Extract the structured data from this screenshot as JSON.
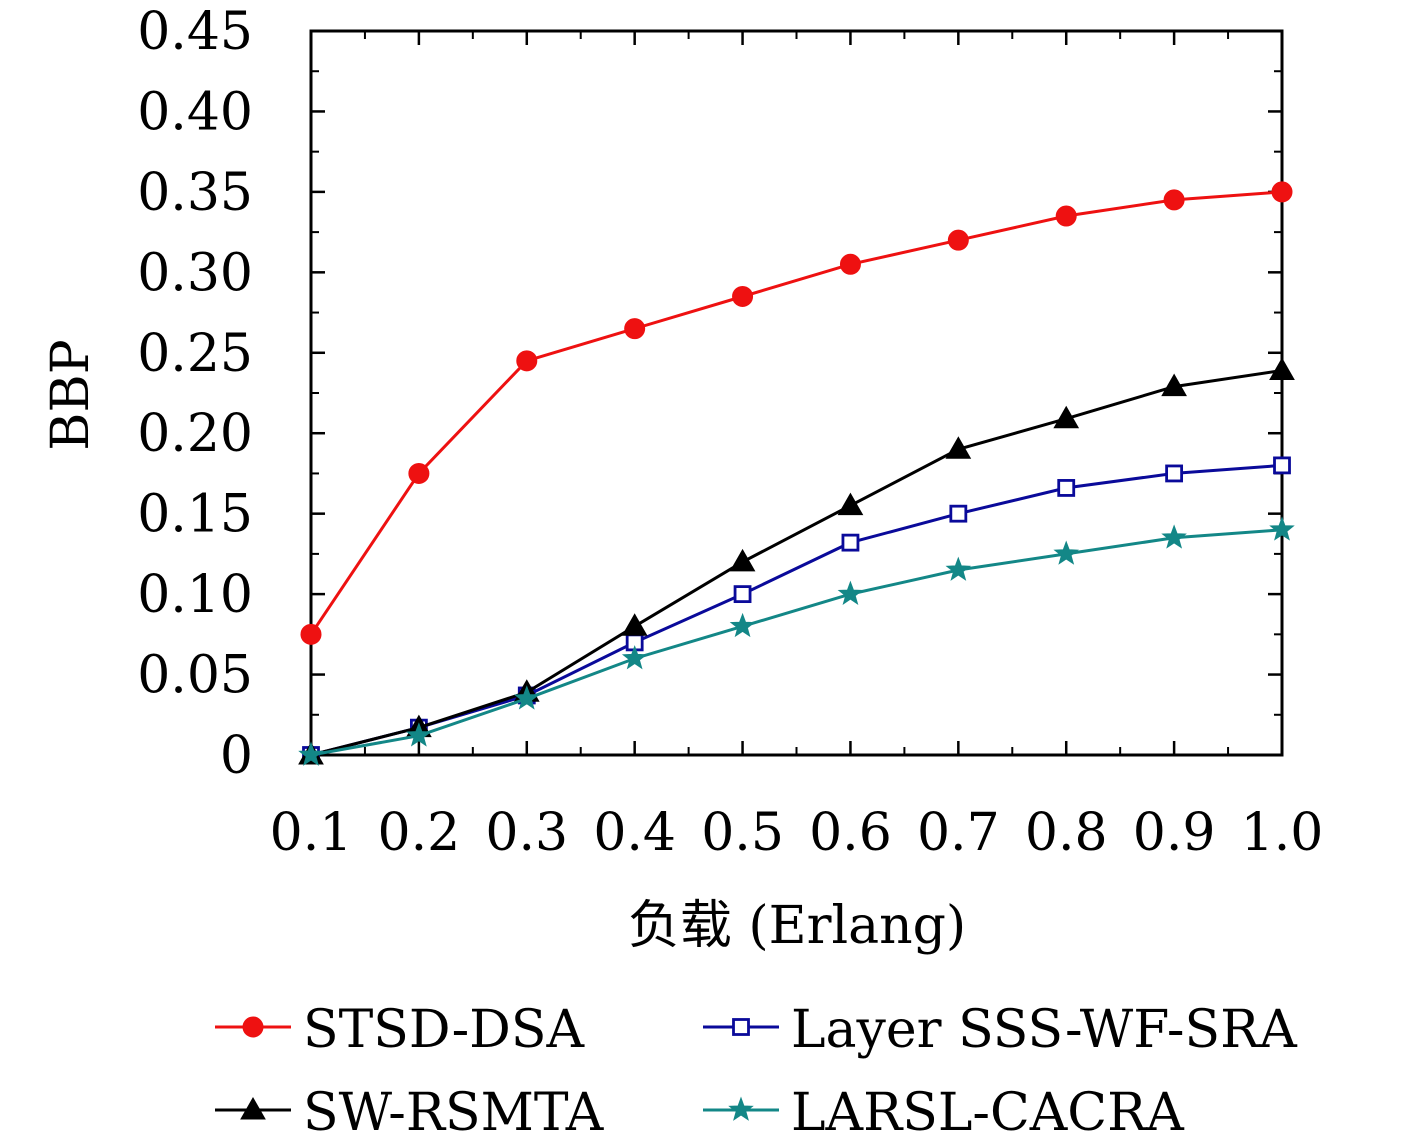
{
  "chart_data": {
    "type": "line",
    "title": "",
    "xlabel": "负载 (Erlang)",
    "ylabel": "BBP",
    "x": [
      0.1,
      0.2,
      0.3,
      0.4,
      0.5,
      0.6,
      0.7,
      0.8,
      0.9,
      1.0
    ],
    "x_tick_labels": [
      "0.1",
      "0.2",
      "0.3",
      "0.4",
      "0.5",
      "0.6",
      "0.7",
      "0.8",
      "0.9",
      "1.0"
    ],
    "xlim": [
      0.1,
      1.0
    ],
    "ylim": [
      0,
      0.45
    ],
    "y_ticks": [
      0,
      0.05,
      0.1,
      0.15,
      0.2,
      0.25,
      0.3,
      0.35,
      0.4,
      0.45
    ],
    "y_tick_labels": [
      "0",
      "0.05",
      "0.10",
      "0.15",
      "0.20",
      "0.25",
      "0.30",
      "0.35",
      "0.40",
      "0.45"
    ],
    "grid": false,
    "legend_position": "bottom",
    "series": [
      {
        "name": "STSD-DSA",
        "color": "#ee1111",
        "marker": "circle",
        "values": [
          0.075,
          0.175,
          0.245,
          0.265,
          0.285,
          0.305,
          0.32,
          0.335,
          0.345,
          0.35
        ]
      },
      {
        "name": "Layer SSS-WF-SRA",
        "color": "#0a0a9a",
        "marker": "open-square",
        "values": [
          0.0,
          0.017,
          0.037,
          0.07,
          0.1,
          0.132,
          0.15,
          0.166,
          0.175,
          0.18
        ]
      },
      {
        "name": "SW-RSMTA",
        "color": "#000000",
        "marker": "triangle",
        "values": [
          0.0,
          0.017,
          0.039,
          0.08,
          0.12,
          0.155,
          0.19,
          0.209,
          0.229,
          0.239
        ]
      },
      {
        "name": "LARSL-CACRA",
        "color": "#138787",
        "marker": "star",
        "values": [
          0.0,
          0.012,
          0.035,
          0.06,
          0.08,
          0.1,
          0.115,
          0.125,
          0.135,
          0.14
        ]
      }
    ]
  }
}
